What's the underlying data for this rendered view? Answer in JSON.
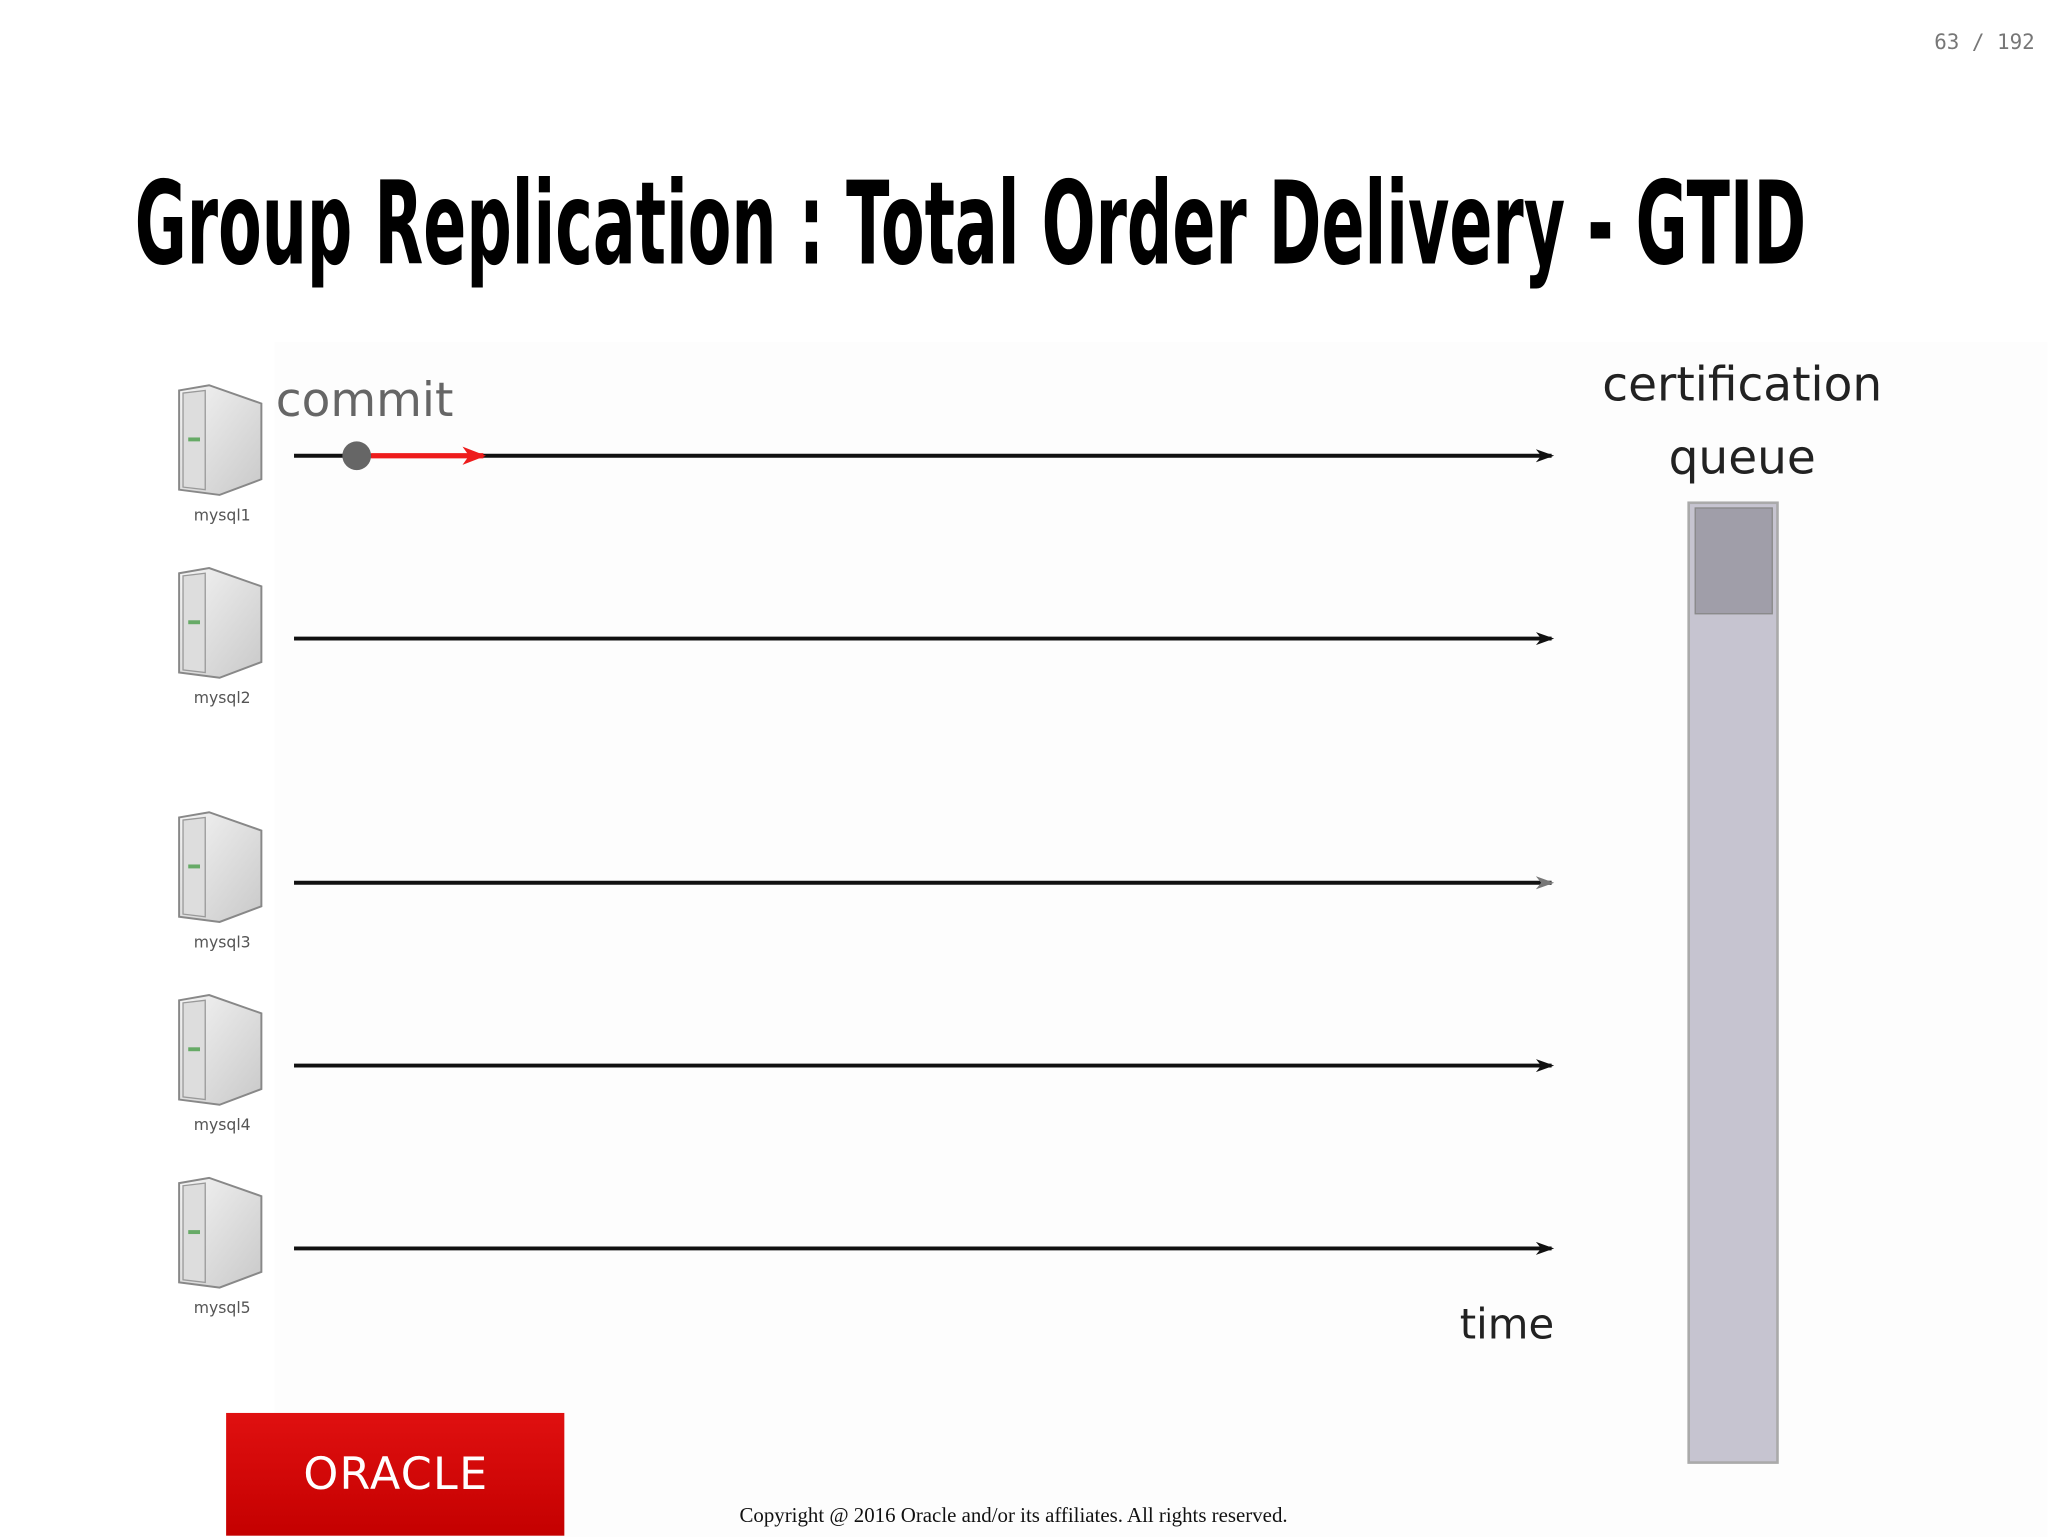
{
  "page_number": "63 / 192",
  "title": "Group Replication : Total Order Delivery - GTID",
  "nodes": [
    {
      "label": "mysql1"
    },
    {
      "label": "mysql2"
    },
    {
      "label": "mysql3"
    },
    {
      "label": "mysql4"
    },
    {
      "label": "mysql5"
    }
  ],
  "annotations": {
    "commit": "commit",
    "queue_title": [
      "certification",
      "queue"
    ],
    "time": "time"
  },
  "logo": "ORACLE",
  "copyright": "Copyright @ 2016 Oracle and/or its affiliates. All rights reserved."
}
